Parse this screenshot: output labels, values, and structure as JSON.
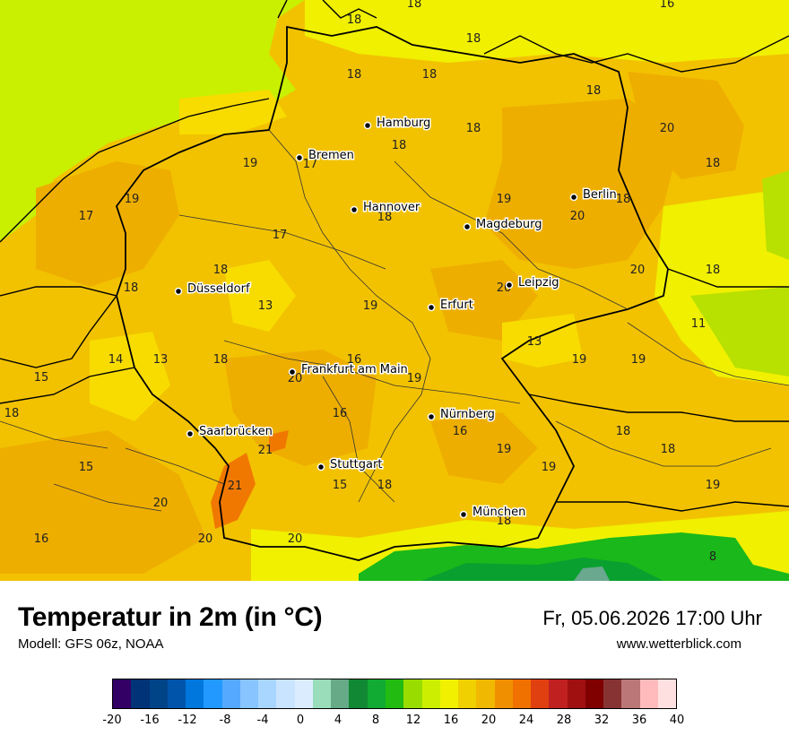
{
  "title": "Temperatur in 2m (in °C)",
  "model": "Modell: GFS 06z, NOAA",
  "datetime": "Fr, 05.06.2026 17:00 Uhr",
  "website": "www.wetterblick.com",
  "colors": {
    "sea": "#c8f000",
    "base": "#f2c200",
    "warm": "#eeae00",
    "cool": "#f8dc00",
    "yellow": "#f0f000",
    "lightgreen": "#b8e000",
    "green": "#1ab81a",
    "darkgreen": "#0aa030",
    "hot": "#f07800",
    "border": "#000000",
    "admin": "#3a3a3a"
  },
  "cities": [
    {
      "name": "Hamburg"
    },
    {
      "name": "Bremen"
    },
    {
      "name": "Hannover"
    },
    {
      "name": "Berlin"
    },
    {
      "name": "Magdeburg"
    },
    {
      "name": "Düsseldorf"
    },
    {
      "name": "Leipzig"
    },
    {
      "name": "Erfurt"
    },
    {
      "name": "Frankfurt am Main"
    },
    {
      "name": "Nürnberg"
    },
    {
      "name": "Saarbrücken"
    },
    {
      "name": "Stuttgart"
    },
    {
      "name": "München"
    }
  ],
  "temperature_labels": [
    "18",
    "16",
    "18",
    "18",
    "18",
    "18",
    "18",
    "18",
    "20",
    "18",
    "17",
    "19",
    "19",
    "17",
    "18",
    "17",
    "20",
    "19",
    "18",
    "18",
    "20",
    "18",
    "18",
    "13",
    "19",
    "20",
    "11",
    "18",
    "14",
    "13",
    "18",
    "16",
    "13",
    "20",
    "19",
    "19",
    "19",
    "15",
    "18",
    "16",
    "16",
    "21",
    "18",
    "15",
    "19",
    "18",
    "19",
    "21",
    "15",
    "18",
    "19",
    "20",
    "20",
    "20",
    "16",
    "18",
    "8"
  ],
  "scale": {
    "colors": [
      "#330066",
      "#003377",
      "#004488",
      "#0055aa",
      "#0077dd",
      "#2299ff",
      "#55aaff",
      "#88c4ff",
      "#a8d6ff",
      "#c8e4ff",
      "#dcecff",
      "#99ddbb",
      "#66aa88",
      "#118833",
      "#11aa33",
      "#22bb11",
      "#99dd00",
      "#ccee00",
      "#f0f000",
      "#f0d000",
      "#f0b800",
      "#f09000",
      "#f07000",
      "#e04010",
      "#c02020",
      "#a01010",
      "#800000",
      "#883333",
      "#bb7777",
      "#ffbbbb",
      "#ffe0e0"
    ],
    "ticks": [
      "-20",
      "-16",
      "-12",
      "-8",
      "-4",
      "0",
      "4",
      "8",
      "12",
      "16",
      "20",
      "24",
      "28",
      "32",
      "36",
      "40"
    ]
  }
}
